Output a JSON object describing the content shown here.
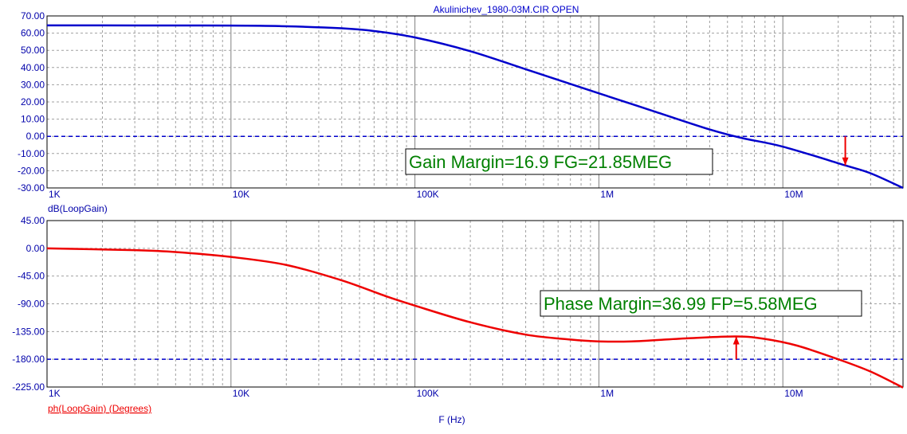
{
  "colors": {
    "gain": "#0000cc",
    "phase": "#ee0000",
    "grid": "#a0a0a0",
    "ref": "#0000cc",
    "note_text": "#008000",
    "tick_text": "#0000aa"
  },
  "chart_data": [
    {
      "type": "line",
      "title": "Akulinichev_1980-03M.CIR OPEN",
      "xscale": "log",
      "xlim": [
        1000,
        45000000
      ],
      "ylim": [
        -30,
        70
      ],
      "yticks": [
        "70.00",
        "60.00",
        "50.00",
        "40.00",
        "30.00",
        "20.00",
        "10.00",
        "0.00",
        "-10.00",
        "-20.00",
        "-30.00"
      ],
      "xticks": [
        "1K",
        "10K",
        "100K",
        "1M",
        "10M"
      ],
      "ylabel": "dB(LoopGain)",
      "grid": true,
      "reference_line": 0,
      "series": [
        {
          "name": "dB(LoopGain)",
          "x": [
            1000,
            10000,
            20000,
            40000,
            60000,
            100000,
            200000,
            400000,
            1000000,
            2000000,
            4000000,
            6000000,
            10000000,
            21850000,
            30000000,
            45000000
          ],
          "y": [
            64.5,
            64.4,
            64.0,
            62.8,
            61.2,
            57.5,
            49.5,
            39.0,
            25.0,
            14.5,
            4.0,
            -1.0,
            -6.0,
            -16.9,
            -21.5,
            -30.0
          ]
        }
      ],
      "annotation": {
        "text": "Gain Margin=16.9 FG=21.85MEG",
        "marker_x": 21850000,
        "marker_from": 0,
        "marker_to": -16.9
      }
    },
    {
      "type": "line",
      "xscale": "log",
      "xlim": [
        1000,
        45000000
      ],
      "ylim": [
        -225,
        45
      ],
      "yticks": [
        "45.00",
        "0.00",
        "-45.00",
        "-90.00",
        "-135.00",
        "-180.00",
        "-225.00"
      ],
      "xticks": [
        "1K",
        "10K",
        "100K",
        "1M",
        "10M"
      ],
      "ylabel": "ph(LoopGain) (Degrees)",
      "xlabel": "F (Hz)",
      "grid": true,
      "reference_line": -180,
      "series": [
        {
          "name": "ph(LoopGain) (Degrees)",
          "x": [
            1000,
            3000,
            5000,
            10000,
            20000,
            40000,
            70000,
            100000,
            200000,
            400000,
            700000,
            1000000,
            1500000,
            3000000,
            5580000,
            8000000,
            12000000,
            20000000,
            30000000,
            45000000
          ],
          "y": [
            0,
            -3,
            -6,
            -14,
            -27,
            -52,
            -78,
            -93,
            -120,
            -140,
            -148,
            -151,
            -151,
            -146,
            -143.01,
            -147,
            -158,
            -180,
            -200,
            -226
          ]
        }
      ],
      "annotation": {
        "text": "Phase Margin=36.99 FP=5.58MEG",
        "marker_x": 5580000,
        "marker_from": -180,
        "marker_to": -143.01
      }
    }
  ]
}
